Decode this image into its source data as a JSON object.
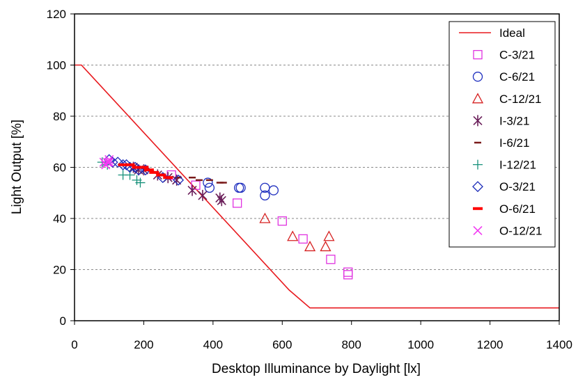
{
  "chart_data": {
    "type": "scatter",
    "title": "",
    "xlabel": "Desktop Illuminance by Daylight [lx]",
    "ylabel": "Light  Output [%]",
    "xlim": [
      0,
      1400
    ],
    "ylim": [
      0,
      120
    ],
    "xticks": [
      "0",
      "200",
      "400",
      "600",
      "800",
      "1000",
      "1200",
      "1400"
    ],
    "yticks": [
      "0",
      "20",
      "40",
      "60",
      "80",
      "100",
      "120"
    ],
    "grid": "horizontal dashed",
    "legend_position": "top-right",
    "series": [
      {
        "name": "Ideal",
        "kind": "line",
        "color": "#e8191e",
        "points": [
          [
            0,
            100
          ],
          [
            20,
            100
          ],
          [
            620,
            12
          ],
          [
            680,
            5
          ],
          [
            1400,
            5
          ]
        ]
      },
      {
        "name": "C-3/21",
        "marker": "square",
        "color": "#e033e0",
        "points": [
          [
            280,
            57
          ],
          [
            350,
            53
          ],
          [
            470,
            46
          ],
          [
            600,
            39
          ],
          [
            660,
            32
          ],
          [
            740,
            24
          ],
          [
            790,
            19
          ],
          [
            790,
            18
          ]
        ]
      },
      {
        "name": "C-6/21",
        "marker": "circle",
        "color": "#1f2fbf",
        "points": [
          [
            385,
            54
          ],
          [
            390,
            52
          ],
          [
            475,
            52
          ],
          [
            480,
            52
          ],
          [
            550,
            52
          ],
          [
            550,
            49
          ],
          [
            575,
            51
          ]
        ]
      },
      {
        "name": "C-12/21",
        "marker": "triangle",
        "color": "#d62020",
        "points": [
          [
            550,
            40
          ],
          [
            630,
            33
          ],
          [
            680,
            29
          ],
          [
            725,
            29
          ],
          [
            735,
            33
          ]
        ]
      },
      {
        "name": "I-3/21",
        "marker": "asterisk",
        "color": "#6b1f5a",
        "points": [
          [
            170,
            60
          ],
          [
            185,
            59
          ],
          [
            200,
            59
          ],
          [
            240,
            57
          ],
          [
            270,
            56
          ],
          [
            295,
            55
          ],
          [
            340,
            51
          ],
          [
            370,
            49
          ],
          [
            420,
            48
          ],
          [
            425,
            47
          ]
        ]
      },
      {
        "name": "I-6/21",
        "marker": "dash",
        "color": "#7a1a1a",
        "points": [
          [
            300,
            56
          ],
          [
            340,
            56
          ],
          [
            360,
            55
          ],
          [
            390,
            55
          ],
          [
            420,
            54
          ],
          [
            430,
            54
          ]
        ]
      },
      {
        "name": "I-12/21",
        "marker": "plus",
        "color": "#16907a",
        "points": [
          [
            80,
            62
          ],
          [
            95,
            61
          ],
          [
            140,
            57
          ],
          [
            160,
            57
          ],
          [
            180,
            55
          ],
          [
            190,
            54
          ]
        ]
      },
      {
        "name": "O-3/21",
        "marker": "diamond",
        "color": "#1a2ab8",
        "points": [
          [
            100,
            63
          ],
          [
            110,
            62
          ],
          [
            125,
            62
          ],
          [
            140,
            61
          ],
          [
            150,
            61
          ],
          [
            160,
            60
          ],
          [
            175,
            60
          ],
          [
            185,
            59
          ],
          [
            205,
            59
          ],
          [
            255,
            56
          ],
          [
            300,
            55
          ]
        ]
      },
      {
        "name": "O-6/21",
        "marker": "bar",
        "color": "#ff0000",
        "points": [
          [
            140,
            61
          ],
          [
            160,
            61
          ],
          [
            180,
            60
          ],
          [
            200,
            60
          ],
          [
            215,
            59
          ],
          [
            230,
            58
          ],
          [
            250,
            57
          ],
          [
            270,
            56
          ]
        ]
      },
      {
        "name": "O-12/21",
        "marker": "x",
        "color": "#f23cf2",
        "points": [
          [
            85,
            62
          ],
          [
            90,
            61
          ],
          [
            95,
            62
          ],
          [
            100,
            62
          ],
          [
            100,
            63
          ]
        ]
      }
    ]
  }
}
